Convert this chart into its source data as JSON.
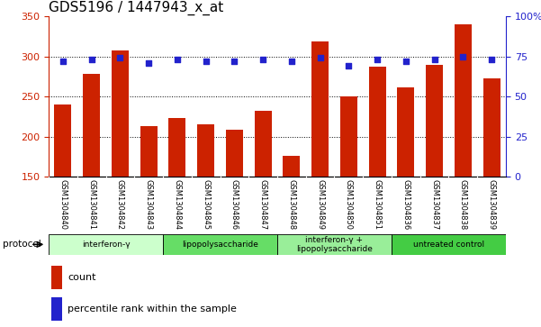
{
  "title": "GDS5196 / 1447943_x_at",
  "samples": [
    "GSM1304840",
    "GSM1304841",
    "GSM1304842",
    "GSM1304843",
    "GSM1304844",
    "GSM1304845",
    "GSM1304846",
    "GSM1304847",
    "GSM1304848",
    "GSM1304849",
    "GSM1304850",
    "GSM1304851",
    "GSM1304836",
    "GSM1304837",
    "GSM1304838",
    "GSM1304839"
  ],
  "counts": [
    240,
    278,
    308,
    213,
    223,
    215,
    208,
    232,
    176,
    319,
    250,
    287,
    261,
    290,
    340,
    273
  ],
  "percentiles": [
    72,
    73,
    74,
    71,
    73,
    72,
    72,
    73,
    72,
    74,
    69,
    73,
    72,
    73,
    75,
    73
  ],
  "groups": [
    {
      "label": "interferon-γ",
      "start": 0,
      "end": 4,
      "color": "#ccffcc"
    },
    {
      "label": "lipopolysaccharide",
      "start": 4,
      "end": 8,
      "color": "#66dd66"
    },
    {
      "label": "interferon-γ +\nlipopolysaccharide",
      "start": 8,
      "end": 12,
      "color": "#99ee99"
    },
    {
      "label": "untreated control",
      "start": 12,
      "end": 16,
      "color": "#44cc44"
    }
  ],
  "ylim_left": [
    150,
    350
  ],
  "ylim_right": [
    0,
    100
  ],
  "yticks_left": [
    150,
    200,
    250,
    300,
    350
  ],
  "yticks_right": [
    0,
    25,
    50,
    75,
    100
  ],
  "bar_color": "#cc2200",
  "dot_color": "#2222cc",
  "tick_fontsize": 8,
  "bar_width": 0.6,
  "protocol_label": "protocol"
}
